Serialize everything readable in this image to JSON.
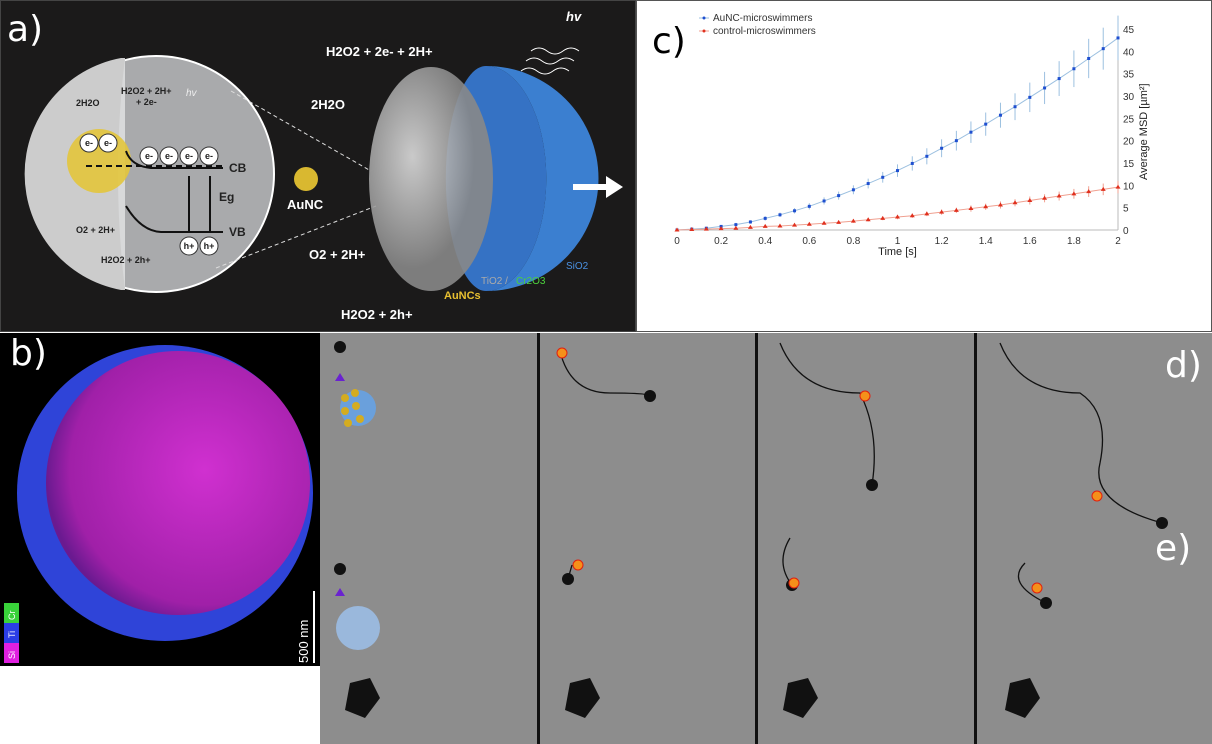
{
  "panels": {
    "a": "a)",
    "b": "b)",
    "c": "c)",
    "d": "d)",
    "e": "e)"
  },
  "schematic": {
    "inset": {
      "h2o2_top": "H2O2 + 2H+",
      "plus_2e": "+ 2e-",
      "water": "2H2O",
      "hv": "hv",
      "cb": "CB",
      "vb": "VB",
      "eg": "Eg",
      "o2": "O2 + 2H+",
      "h2o2_bottom": "H2O2 + 2h+",
      "electron": "e-",
      "hole": "h+"
    },
    "aunc_label": "AuNC",
    "top_reaction": "H2O2 + 2e- + 2H+",
    "top_product": "2H2O",
    "bottom_product": "O2 + 2H+",
    "bottom_reaction": "H2O2 + 2h+",
    "hv": "hv",
    "sio2": "SiO2",
    "aunc_plural": "AuNCs",
    "tio2": "TiO2 /",
    "cr2o3": "Cr2O3"
  },
  "eds": {
    "legend": [
      "Cr",
      "Ti",
      "Si"
    ],
    "colors": [
      "#39d23a",
      "#2b3de6",
      "#e020e0"
    ],
    "scale_bar": "500 nm"
  },
  "chart_data": {
    "type": "line",
    "xlabel": "Time [s]",
    "ylabel": "Average MSD [µm²]",
    "xlim": [
      0,
      2
    ],
    "ylim": [
      0,
      47
    ],
    "xticks": [
      "0",
      "0.2",
      "0.4",
      "0.6",
      "0.8",
      "1",
      "1.2",
      "1.4",
      "1.6",
      "1.8",
      "2"
    ],
    "yticks": [
      "0",
      "5",
      "10",
      "15",
      "20",
      "25",
      "30",
      "35",
      "40",
      "45"
    ],
    "legend_position": "top-left",
    "x": [
      0,
      0.067,
      0.133,
      0.2,
      0.267,
      0.333,
      0.4,
      0.467,
      0.533,
      0.6,
      0.667,
      0.733,
      0.8,
      0.867,
      0.933,
      1,
      1.067,
      1.133,
      1.2,
      1.267,
      1.333,
      1.4,
      1.467,
      1.533,
      1.6,
      1.667,
      1.733,
      1.8,
      1.867,
      1.933,
      2
    ],
    "series": [
      {
        "name": "AuNC-microswimmers",
        "color": "#1f4fd0",
        "marker": "square",
        "values": [
          0,
          0.2,
          0.4,
          0.8,
          1.2,
          1.8,
          2.6,
          3.4,
          4.3,
          5.3,
          6.5,
          7.7,
          9.0,
          10.4,
          11.8,
          13.3,
          14.9,
          16.5,
          18.3,
          20.0,
          21.9,
          23.7,
          25.7,
          27.6,
          29.7,
          31.8,
          33.9,
          36.1,
          38.4,
          40.6,
          43.0
        ],
        "errors": [
          0.2,
          0.2,
          0.3,
          0.3,
          0.4,
          0.4,
          0.5,
          0.5,
          0.6,
          0.7,
          0.8,
          0.9,
          1.0,
          1.1,
          1.2,
          1.4,
          1.6,
          1.8,
          2.0,
          2.2,
          2.4,
          2.6,
          2.8,
          3.0,
          3.3,
          3.6,
          3.9,
          4.1,
          4.4,
          4.7,
          5.0
        ]
      },
      {
        "name": "control-microswimmers",
        "color": "#e0301e",
        "marker": "triangle",
        "values": [
          0,
          0.1,
          0.2,
          0.3,
          0.4,
          0.6,
          0.8,
          0.9,
          1.1,
          1.3,
          1.5,
          1.7,
          2.0,
          2.3,
          2.6,
          2.9,
          3.2,
          3.6,
          4.0,
          4.4,
          4.8,
          5.2,
          5.6,
          6.1,
          6.6,
          7.1,
          7.6,
          8.1,
          8.6,
          9.1,
          9.6
        ],
        "errors": [
          0.1,
          0.1,
          0.1,
          0.1,
          0.2,
          0.2,
          0.2,
          0.2,
          0.3,
          0.3,
          0.3,
          0.3,
          0.4,
          0.4,
          0.4,
          0.5,
          0.5,
          0.5,
          0.6,
          0.6,
          0.7,
          0.7,
          0.8,
          0.8,
          0.9,
          0.9,
          1.0,
          1.1,
          1.2,
          1.3,
          1.4
        ]
      }
    ]
  }
}
